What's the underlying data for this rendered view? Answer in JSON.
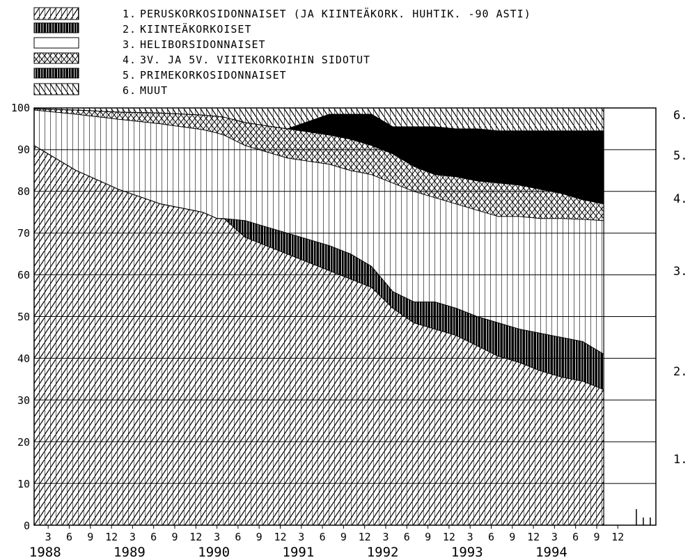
{
  "chart_data": {
    "type": "area",
    "stacked": true,
    "legend": [
      {
        "key": "1.",
        "label": "PERUSKORKOSIDONNAISET (JA KIINTEÄKORK. HUHTIK. -90 ASTI)",
        "pattern": "hatch-right"
      },
      {
        "key": "2.",
        "label": "KIINTEÄKORKOISET",
        "pattern": "dense-vertical"
      },
      {
        "key": "3.",
        "label": "HELIBORSIDONNAISET",
        "pattern": "blank"
      },
      {
        "key": "4.",
        "label": "3V. JA 5V. VIITEKORKOIHIN SIDOTUT",
        "pattern": "crosshatch"
      },
      {
        "key": "5.",
        "label": "PRIMEKORKOSIDONNAISET",
        "pattern": "solid"
      },
      {
        "key": "6.",
        "label": "MUUT",
        "pattern": "hatch-left"
      }
    ],
    "side_labels": [
      "1.",
      "2.",
      "3.",
      "4.",
      "5.",
      "6."
    ],
    "yticks": [
      "0",
      "10",
      "20",
      "30",
      "40",
      "50",
      "60",
      "70",
      "80",
      "90",
      "100"
    ],
    "ylim": [
      0,
      100
    ],
    "years": [
      "1988",
      "1989",
      "1990",
      "1991",
      "1992",
      "1993",
      "1994"
    ],
    "month_ticks": [
      "3",
      "6",
      "9",
      "12"
    ],
    "x_index_range": [
      0,
      81
    ],
    "cum_points": {
      "index": [
        0,
        6,
        12,
        18,
        24,
        26,
        27,
        30,
        36,
        42,
        45,
        48,
        51,
        54,
        57,
        60,
        63,
        66,
        69,
        72,
        75,
        78,
        81
      ],
      "c1": [
        91,
        85,
        80.5,
        77,
        75,
        73.5,
        73.5,
        69,
        65,
        61,
        59,
        57,
        52,
        48.5,
        47,
        45.5,
        43,
        40.5,
        39,
        37,
        35.5,
        34.5,
        32.5
      ],
      "c2": [
        91,
        85,
        80.5,
        77,
        75,
        73.5,
        73.5,
        73,
        70,
        67,
        65,
        62,
        56,
        53.5,
        53.5,
        52,
        50,
        48.5,
        47,
        46,
        45,
        44,
        41
      ],
      "c3": [
        99.5,
        98.5,
        97.3,
        96.2,
        94.8,
        94,
        93.5,
        91,
        88,
        86.5,
        85,
        84,
        82,
        80,
        78.5,
        77,
        75.5,
        74,
        74,
        73.5,
        73.5,
        73.3,
        73
      ],
      "c4": [
        99.8,
        99.5,
        99,
        98.8,
        98.3,
        98,
        97.8,
        96.5,
        95,
        93.5,
        92.5,
        91,
        89,
        86,
        84,
        83.5,
        82.5,
        82,
        81.5,
        80.5,
        79.5,
        78,
        77
      ],
      "c5": [
        99.8,
        99.5,
        99,
        98.8,
        98.3,
        98,
        97.8,
        96.5,
        95,
        98.5,
        98.5,
        98.5,
        95.5,
        95.5,
        95.5,
        95,
        95,
        94.5,
        94.5,
        94.5,
        94.5,
        94.5,
        94.5
      ],
      "c6": [
        100,
        100,
        100,
        100,
        100,
        100,
        100,
        100,
        100,
        100,
        100,
        100,
        100,
        100,
        100,
        100,
        100,
        100,
        100,
        100,
        100,
        100,
        100
      ]
    }
  }
}
